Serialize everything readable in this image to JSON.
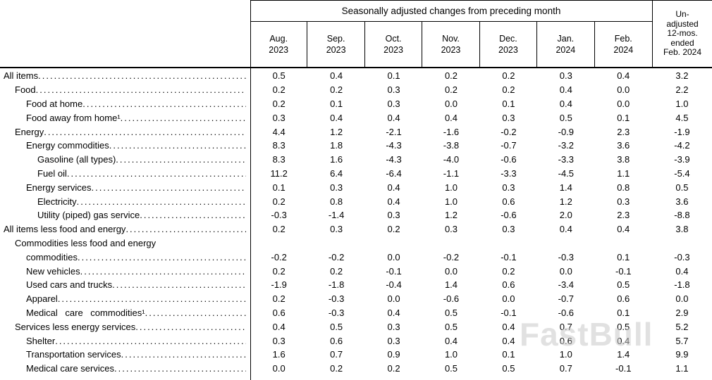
{
  "watermark": {
    "text": "FastBull"
  },
  "chart_data": {
    "type": "table",
    "title": "Seasonally adjusted changes from preceding month",
    "group_header": "Seasonally adjusted changes from preceding month",
    "columns": [
      "Aug. 2023",
      "Sep. 2023",
      "Oct. 2023",
      "Nov. 2023",
      "Dec. 2023",
      "Jan. 2024",
      "Feb. 2024",
      "Un-adjusted 12-mos. ended Feb. 2024"
    ],
    "column_headers": [
      {
        "line1": "Aug.",
        "line2": "2023"
      },
      {
        "line1": "Sep.",
        "line2": "2023"
      },
      {
        "line1": "Oct.",
        "line2": "2023"
      },
      {
        "line1": "Nov.",
        "line2": "2023"
      },
      {
        "line1": "Dec.",
        "line2": "2023"
      },
      {
        "line1": "Jan.",
        "line2": "2024"
      },
      {
        "line1": "Feb.",
        "line2": "2024"
      }
    ],
    "unadjusted_header_lines": [
      "Un-",
      "adjusted",
      "12-mos.",
      "ended",
      "Feb. 2024"
    ],
    "rows": [
      {
        "label": "All items",
        "indent": 0,
        "values": [
          0.5,
          0.4,
          0.1,
          0.2,
          0.2,
          0.3,
          0.4,
          3.2
        ]
      },
      {
        "label": "Food",
        "indent": 1,
        "values": [
          0.2,
          0.2,
          0.3,
          0.2,
          0.2,
          0.4,
          0.0,
          2.2
        ]
      },
      {
        "label": "Food at home",
        "indent": 2,
        "values": [
          0.2,
          0.1,
          0.3,
          0.0,
          0.1,
          0.4,
          0.0,
          1.0
        ]
      },
      {
        "label": "Food away from home¹",
        "indent": 2,
        "values": [
          0.3,
          0.4,
          0.4,
          0.4,
          0.3,
          0.5,
          0.1,
          4.5
        ]
      },
      {
        "label": "Energy",
        "indent": 1,
        "values": [
          4.4,
          1.2,
          -2.1,
          -1.6,
          -0.2,
          -0.9,
          2.3,
          -1.9
        ]
      },
      {
        "label": "Energy commodities",
        "indent": 2,
        "values": [
          8.3,
          1.8,
          -4.3,
          -3.8,
          -0.7,
          -3.2,
          3.6,
          -4.2
        ]
      },
      {
        "label": "Gasoline (all types)",
        "indent": 3,
        "values": [
          8.3,
          1.6,
          -4.3,
          -4.0,
          -0.6,
          -3.3,
          3.8,
          -3.9
        ]
      },
      {
        "label": "Fuel oil",
        "indent": 3,
        "values": [
          11.2,
          6.4,
          -6.4,
          -1.1,
          -3.3,
          -4.5,
          1.1,
          -5.4
        ]
      },
      {
        "label": "Energy services",
        "indent": 2,
        "values": [
          0.1,
          0.3,
          0.4,
          1.0,
          0.3,
          1.4,
          0.8,
          0.5
        ]
      },
      {
        "label": "Electricity",
        "indent": 3,
        "values": [
          0.2,
          0.8,
          0.4,
          1.0,
          0.6,
          1.2,
          0.3,
          3.6
        ]
      },
      {
        "label": "Utility (piped) gas service",
        "indent": 3,
        "values": [
          -0.3,
          -1.4,
          0.3,
          1.2,
          -0.6,
          2.0,
          2.3,
          -8.8
        ]
      },
      {
        "label": "All items less food and energy",
        "indent": 0,
        "values": [
          0.2,
          0.3,
          0.2,
          0.3,
          0.3,
          0.4,
          0.4,
          3.8
        ]
      },
      {
        "label": "Commodities less food and energy commodities",
        "label_lines": [
          "Commodities less food and energy",
          "commodities"
        ],
        "indent": 1,
        "values": [
          -0.2,
          -0.2,
          0.0,
          -0.2,
          -0.1,
          -0.3,
          0.1,
          -0.3
        ]
      },
      {
        "label": "New vehicles",
        "indent": 2,
        "values": [
          0.2,
          0.2,
          -0.1,
          0.0,
          0.2,
          0.0,
          -0.1,
          0.4
        ]
      },
      {
        "label": "Used cars and trucks",
        "indent": 2,
        "values": [
          -1.9,
          -1.8,
          -0.4,
          1.4,
          0.6,
          -3.4,
          0.5,
          -1.8
        ]
      },
      {
        "label": "Apparel",
        "indent": 2,
        "values": [
          0.2,
          -0.3,
          0.0,
          -0.6,
          0.0,
          -0.7,
          0.6,
          0.0
        ]
      },
      {
        "label": "Medical care commodities¹",
        "indent": 2,
        "spaced": true,
        "values": [
          0.6,
          -0.3,
          0.4,
          0.5,
          -0.1,
          -0.6,
          0.1,
          2.9
        ]
      },
      {
        "label": "Services less energy services",
        "indent": 1,
        "values": [
          0.4,
          0.5,
          0.3,
          0.5,
          0.4,
          0.7,
          0.5,
          5.2
        ]
      },
      {
        "label": "Shelter",
        "indent": 2,
        "values": [
          0.3,
          0.6,
          0.3,
          0.4,
          0.4,
          0.6,
          0.4,
          5.7
        ]
      },
      {
        "label": "Transportation services",
        "indent": 2,
        "values": [
          1.6,
          0.7,
          0.9,
          1.0,
          0.1,
          1.0,
          1.4,
          9.9
        ]
      },
      {
        "label": "Medical care services",
        "indent": 2,
        "values": [
          0.0,
          0.2,
          0.2,
          0.5,
          0.5,
          0.7,
          -0.1,
          1.1
        ]
      }
    ]
  }
}
